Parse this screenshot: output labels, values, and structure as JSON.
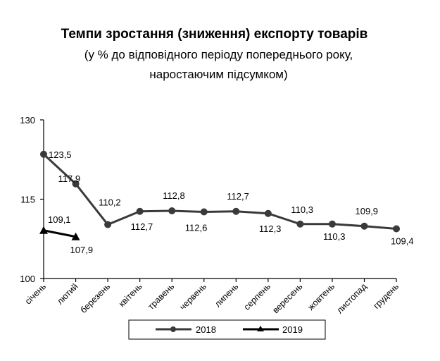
{
  "title": {
    "line1": "Темпи зростання (зниження) експорту товарів",
    "line2": "(у % до відповідного періоду попереднього року,",
    "line3": "наростаючим підсумком)"
  },
  "colors": {
    "series_2018": "#3a3a3a",
    "series_2019": "#000000",
    "axis": "#000000"
  },
  "chart_data": {
    "type": "line",
    "title": "Темпи зростання (зниження) експорту товарів (у % до відповідного періоду попереднього року, наростаючим підсумком)",
    "xlabel": "",
    "ylabel": "",
    "ylim": [
      100,
      130
    ],
    "yticks": [
      "100",
      "115",
      "130"
    ],
    "grid": false,
    "legend_position": "bottom",
    "categories": [
      "січень",
      "лютий",
      "березень",
      "квітень",
      "травень",
      "червень",
      "липень",
      "серпень",
      "вересень",
      "жовтень",
      "листопад",
      "грудень"
    ],
    "series": [
      {
        "name": "2018",
        "marker": "circle",
        "values": [
          123.5,
          117.9,
          110.2,
          112.7,
          112.8,
          112.6,
          112.7,
          112.3,
          110.3,
          110.3,
          109.9,
          109.4
        ],
        "labels": [
          "123,5",
          "117,9",
          "110,2",
          "112,7",
          "112,8",
          "112,6",
          "112,7",
          "112,3",
          "110,3",
          "110,3",
          "109,9",
          "109,4"
        ]
      },
      {
        "name": "2019",
        "marker": "triangle",
        "values": [
          109.1,
          107.9,
          null,
          null,
          null,
          null,
          null,
          null,
          null,
          null,
          null,
          null
        ],
        "labels": [
          "109,1",
          "107,9"
        ]
      }
    ]
  },
  "legend": {
    "item1": "2018",
    "item2": "2019"
  }
}
